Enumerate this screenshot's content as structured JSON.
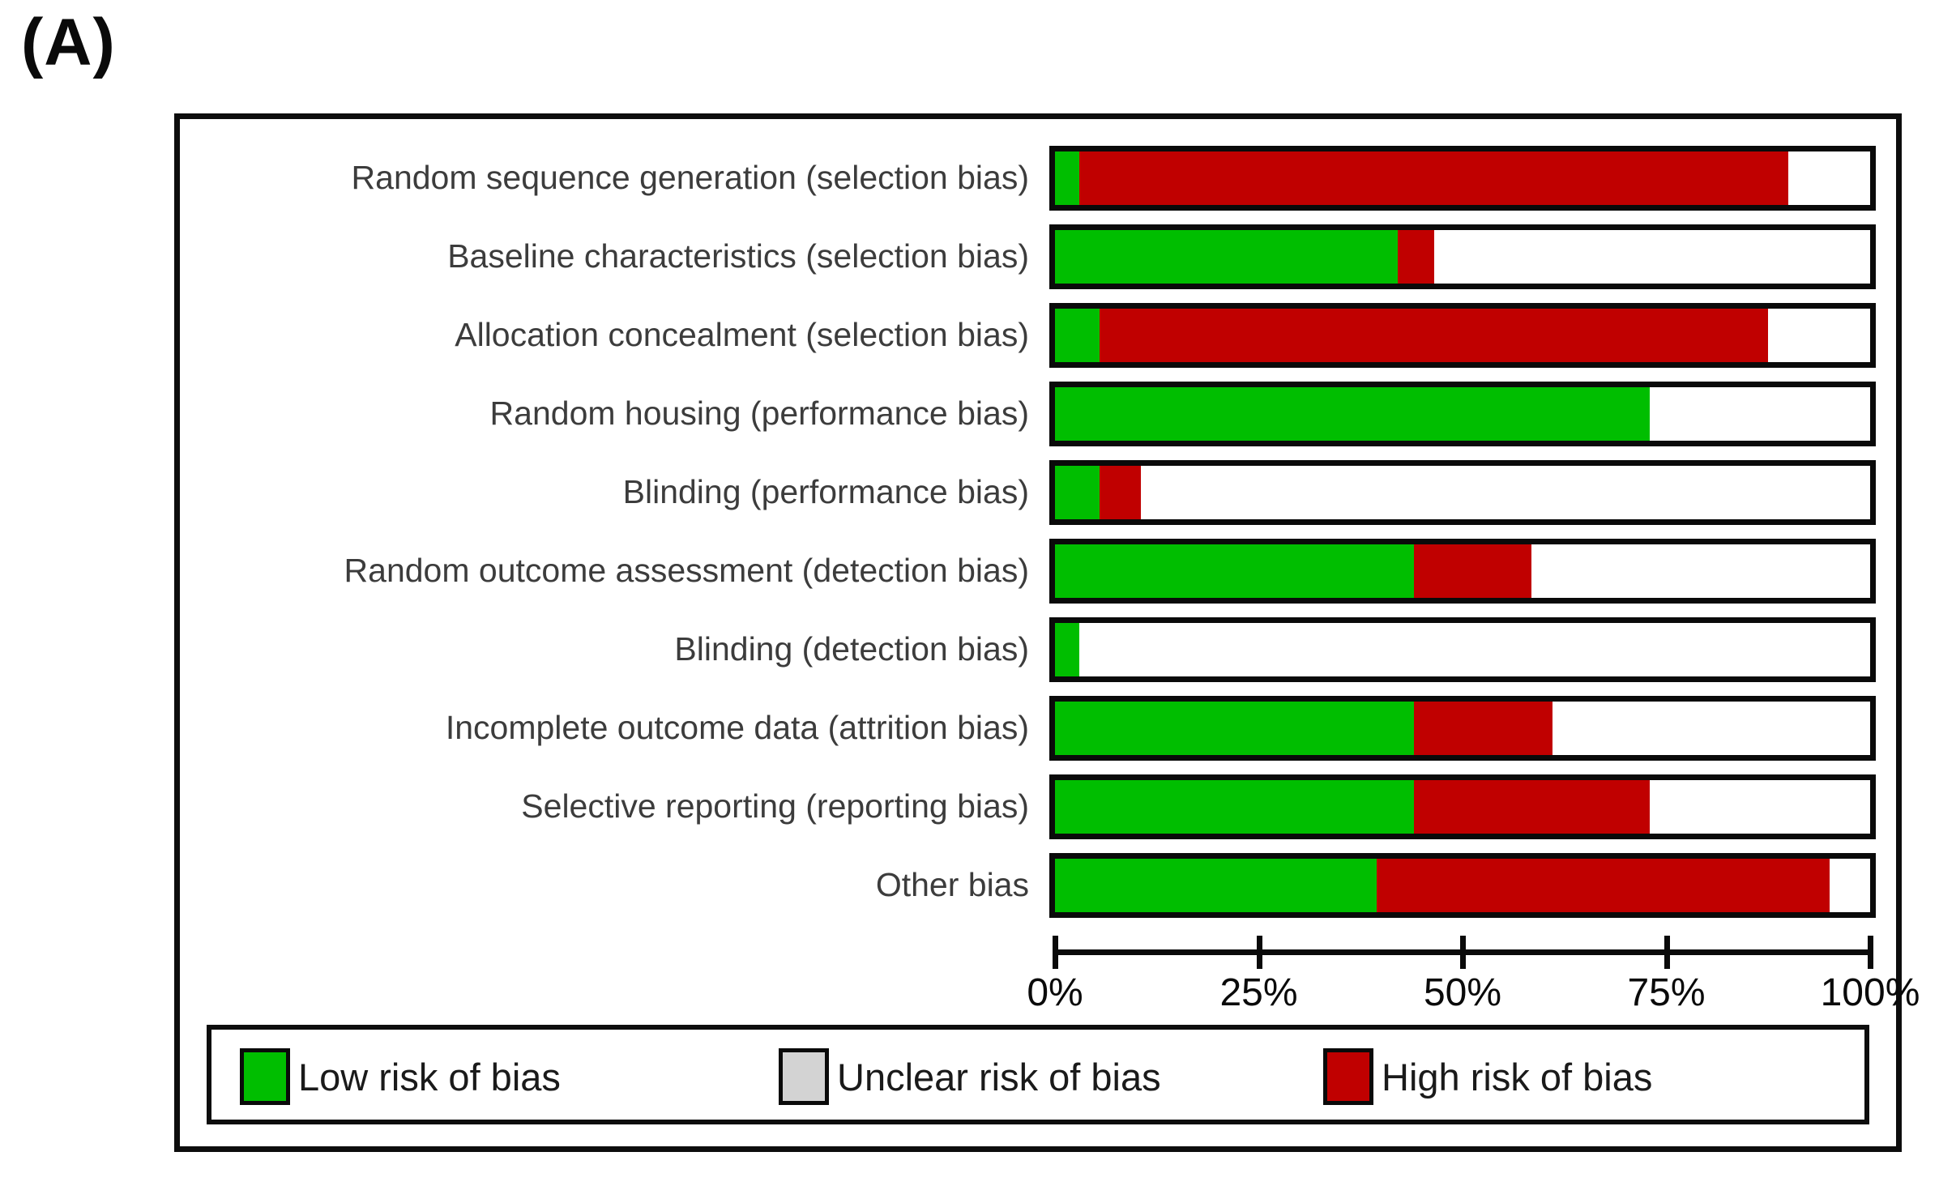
{
  "panel_label": "(A)",
  "chart_data": {
    "type": "bar",
    "orientation": "horizontal",
    "stacked": true,
    "unit": "percent",
    "xlim": [
      0,
      100
    ],
    "grid": false,
    "axis_ticks": [
      {
        "label": "0%",
        "pct": 0
      },
      {
        "label": "25%",
        "pct": 25
      },
      {
        "label": "50%",
        "pct": 50
      },
      {
        "label": "75%",
        "pct": 75
      },
      {
        "label": "100%",
        "pct": 100
      }
    ],
    "categories": [
      "Random sequence generation (selection bias)",
      "Baseline characteristics (selection bias)",
      "Allocation concealment (selection bias)",
      "Random housing (performance bias)",
      "Blinding (performance bias)",
      "Random outcome assessment (detection bias)",
      "Blinding (detection bias)",
      "Incomplete outcome data (attrition bias)",
      "Selective reporting (reporting bias)",
      "Other bias"
    ],
    "series": [
      {
        "name": "Low risk of bias",
        "bar_color": "#00be00",
        "values": [
          3,
          42,
          5.5,
          73,
          5.5,
          44,
          3,
          44,
          44,
          39.5
        ]
      },
      {
        "name": "High risk of bias",
        "bar_color": "#c00000",
        "values": [
          87,
          4.5,
          82,
          0,
          5,
          14.5,
          0,
          17,
          29,
          55.5
        ]
      },
      {
        "name": "Unclear risk of bias",
        "bar_color": "#ffffff",
        "values": [
          10,
          53.5,
          12.5,
          27,
          89.5,
          41.5,
          97,
          39,
          27,
          5
        ]
      }
    ],
    "legend_position": "bottom"
  },
  "legend": {
    "items": [
      {
        "label": "Low risk of bias",
        "color": "#00be00"
      },
      {
        "label": "Unclear risk of bias",
        "color": "#d3d3d3"
      },
      {
        "label": "High risk of bias",
        "color": "#c00000"
      }
    ]
  },
  "colors": {
    "low": "#00be00",
    "unclear_legend": "#d3d3d3",
    "high": "#c00000",
    "border": "#0a0a0a",
    "label_text": "#3c3c3c"
  }
}
